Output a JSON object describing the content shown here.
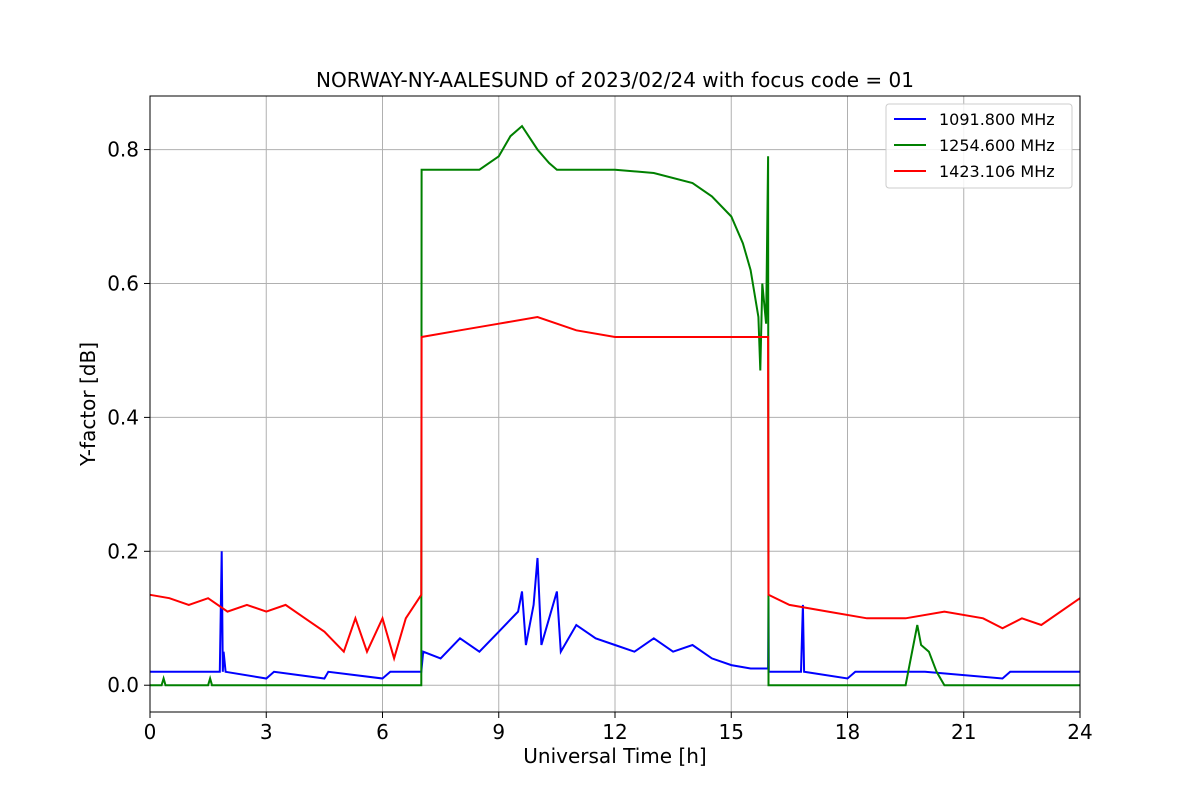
{
  "chart_data": {
    "type": "line",
    "title": "NORWAY-NY-AALESUND of 2023/02/24 with focus code = 01",
    "xlabel": "Universal Time [h]",
    "ylabel": "Y-factor [dB]",
    "xlim": [
      0,
      24
    ],
    "ylim": [
      -0.04,
      0.88
    ],
    "xticks": [
      0,
      3,
      6,
      9,
      12,
      15,
      18,
      21,
      24
    ],
    "xtick_labels": [
      "0",
      "3",
      "6",
      "9",
      "12",
      "15",
      "18",
      "21",
      "24"
    ],
    "yticks": [
      0.0,
      0.2,
      0.4,
      0.6,
      0.8
    ],
    "ytick_labels": [
      "0.0",
      "0.2",
      "0.4",
      "0.6",
      "0.8"
    ],
    "grid": true,
    "legend_position": "top-right",
    "series": [
      {
        "name": "1091.800 MHz",
        "color": "#0000ff",
        "points": [
          [
            0,
            0.02
          ],
          [
            1.8,
            0.02
          ],
          [
            1.85,
            0.2
          ],
          [
            1.88,
            0.02
          ],
          [
            1.9,
            0.05
          ],
          [
            1.95,
            0.02
          ],
          [
            3.0,
            0.01
          ],
          [
            3.2,
            0.02
          ],
          [
            4.5,
            0.01
          ],
          [
            4.6,
            0.02
          ],
          [
            6.0,
            0.01
          ],
          [
            6.2,
            0.02
          ],
          [
            7.0,
            0.02
          ],
          [
            7.05,
            0.05
          ],
          [
            7.5,
            0.04
          ],
          [
            8.0,
            0.07
          ],
          [
            8.5,
            0.05
          ],
          [
            9.0,
            0.08
          ],
          [
            9.5,
            0.11
          ],
          [
            9.6,
            0.14
          ],
          [
            9.7,
            0.06
          ],
          [
            9.9,
            0.12
          ],
          [
            10.0,
            0.19
          ],
          [
            10.1,
            0.06
          ],
          [
            10.5,
            0.14
          ],
          [
            10.6,
            0.05
          ],
          [
            11.0,
            0.09
          ],
          [
            11.5,
            0.07
          ],
          [
            12.0,
            0.06
          ],
          [
            12.5,
            0.05
          ],
          [
            13.0,
            0.07
          ],
          [
            13.5,
            0.05
          ],
          [
            14.0,
            0.06
          ],
          [
            14.5,
            0.04
          ],
          [
            15.0,
            0.03
          ],
          [
            15.5,
            0.025
          ],
          [
            15.95,
            0.025
          ],
          [
            15.96,
            0.13
          ],
          [
            15.97,
            0.02
          ],
          [
            16.5,
            0.02
          ],
          [
            16.8,
            0.02
          ],
          [
            16.85,
            0.12
          ],
          [
            16.88,
            0.02
          ],
          [
            18.0,
            0.01
          ],
          [
            18.2,
            0.02
          ],
          [
            20.0,
            0.02
          ],
          [
            22.0,
            0.01
          ],
          [
            22.2,
            0.02
          ],
          [
            24.0,
            0.02
          ]
        ]
      },
      {
        "name": "1254.600 MHz",
        "color": "#008000",
        "points": [
          [
            0,
            0.0
          ],
          [
            0.3,
            0.0
          ],
          [
            0.35,
            0.01
          ],
          [
            0.4,
            0.0
          ],
          [
            1.5,
            0.0
          ],
          [
            1.55,
            0.01
          ],
          [
            1.6,
            0.0
          ],
          [
            7.0,
            0.0
          ],
          [
            7.01,
            0.77
          ],
          [
            8.5,
            0.77
          ],
          [
            9.0,
            0.79
          ],
          [
            9.3,
            0.82
          ],
          [
            9.6,
            0.835
          ],
          [
            10.0,
            0.8
          ],
          [
            10.3,
            0.78
          ],
          [
            10.5,
            0.77
          ],
          [
            12.0,
            0.77
          ],
          [
            13.0,
            0.765
          ],
          [
            14.0,
            0.75
          ],
          [
            14.5,
            0.73
          ],
          [
            15.0,
            0.7
          ],
          [
            15.3,
            0.66
          ],
          [
            15.5,
            0.62
          ],
          [
            15.7,
            0.55
          ],
          [
            15.75,
            0.47
          ],
          [
            15.8,
            0.6
          ],
          [
            15.9,
            0.54
          ],
          [
            15.95,
            0.79
          ],
          [
            15.96,
            0.0
          ],
          [
            19.5,
            0.0
          ],
          [
            19.6,
            0.03
          ],
          [
            19.7,
            0.06
          ],
          [
            19.8,
            0.09
          ],
          [
            19.9,
            0.06
          ],
          [
            20.1,
            0.05
          ],
          [
            20.3,
            0.02
          ],
          [
            20.5,
            0.0
          ],
          [
            24.0,
            0.0
          ]
        ]
      },
      {
        "name": "1423.106 MHz",
        "color": "#ff0000",
        "points": [
          [
            0,
            0.135
          ],
          [
            0.5,
            0.13
          ],
          [
            1.0,
            0.12
          ],
          [
            1.5,
            0.13
          ],
          [
            2.0,
            0.11
          ],
          [
            2.5,
            0.12
          ],
          [
            3.0,
            0.11
          ],
          [
            3.5,
            0.12
          ],
          [
            4.0,
            0.1
          ],
          [
            4.5,
            0.08
          ],
          [
            5.0,
            0.05
          ],
          [
            5.3,
            0.1
          ],
          [
            5.6,
            0.05
          ],
          [
            6.0,
            0.1
          ],
          [
            6.3,
            0.04
          ],
          [
            6.6,
            0.1
          ],
          [
            7.0,
            0.135
          ],
          [
            7.01,
            0.52
          ],
          [
            8.0,
            0.53
          ],
          [
            9.0,
            0.54
          ],
          [
            10.0,
            0.55
          ],
          [
            11.0,
            0.53
          ],
          [
            12.0,
            0.52
          ],
          [
            15.0,
            0.52
          ],
          [
            15.95,
            0.52
          ],
          [
            15.96,
            0.135
          ],
          [
            16.5,
            0.12
          ],
          [
            17.5,
            0.11
          ],
          [
            18.5,
            0.1
          ],
          [
            19.5,
            0.1
          ],
          [
            20.5,
            0.11
          ],
          [
            21.5,
            0.1
          ],
          [
            22.0,
            0.085
          ],
          [
            22.5,
            0.1
          ],
          [
            23.0,
            0.09
          ],
          [
            24.0,
            0.13
          ]
        ]
      }
    ]
  }
}
